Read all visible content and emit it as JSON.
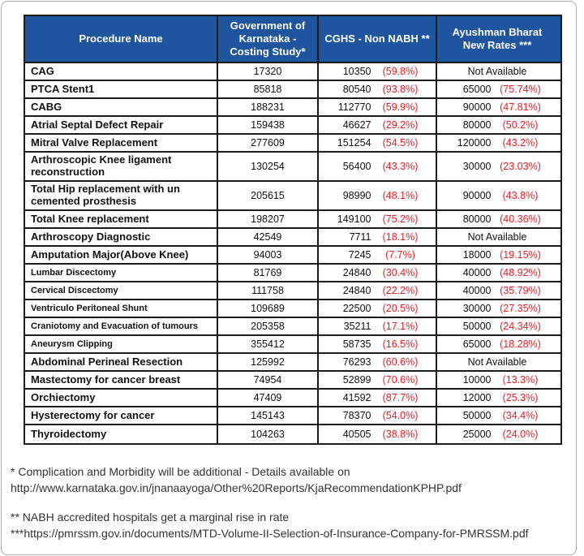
{
  "colors": {
    "header_bg": "#1f549e",
    "header_text": "#ffffff",
    "percent_red": "#ed1c24",
    "body_text": "#111111",
    "table_border": "#1b1b1b"
  },
  "table": {
    "headers": [
      "Procedure Name",
      "Government of Karnataka - Costing Study*",
      "CGHS - Non NABH **",
      "Ayushman Bharat New Rates ***"
    ],
    "rows": [
      {
        "name": "CAG",
        "gok": "17320",
        "cghs": "10350",
        "cghs_pct": "(59.8%)",
        "ab": "Not Available",
        "ab_pct": "",
        "small": false,
        "tall": false
      },
      {
        "name": "PTCA Stent1",
        "gok": "85818",
        "cghs": "80540",
        "cghs_pct": "(93.8%)",
        "ab": "65000",
        "ab_pct": "(75.74%)",
        "small": false,
        "tall": false
      },
      {
        "name": "CABG",
        "gok": "188231",
        "cghs": "112770",
        "cghs_pct": "(59.9%)",
        "ab": "90000",
        "ab_pct": "(47.81%)",
        "small": false,
        "tall": false
      },
      {
        "name": "Atrial Septal Defect Repair",
        "gok": "159438",
        "cghs": "46627",
        "cghs_pct": "(29.2%)",
        "ab": "80000",
        "ab_pct": "(50.2%)",
        "small": false,
        "tall": false
      },
      {
        "name": "Mitral Valve Replacement",
        "gok": "277609",
        "cghs": "151254",
        "cghs_pct": "(54.5%)",
        "ab": "120000",
        "ab_pct": "(43.2%)",
        "small": false,
        "tall": false
      },
      {
        "name": "Arthroscopic Knee ligament reconstruction",
        "gok": "130254",
        "cghs": "56400",
        "cghs_pct": "(43.3%)",
        "ab": "30000",
        "ab_pct": "(23.03%)",
        "small": false,
        "tall": true
      },
      {
        "name": "Total Hip replacement with un cemented prosthesis",
        "gok": "205615",
        "cghs": "98990",
        "cghs_pct": "(48.1%)",
        "ab": "90000",
        "ab_pct": "(43.8%)",
        "small": false,
        "tall": true
      },
      {
        "name": "Total Knee replacement",
        "gok": "198207",
        "cghs": "149100",
        "cghs_pct": "(75.2%)",
        "ab": "80000",
        "ab_pct": "(40.36%)",
        "small": false,
        "tall": false
      },
      {
        "name": "Arthroscopy Diagnostic",
        "gok": "42549",
        "cghs": "7711",
        "cghs_pct": "(18.1%)",
        "ab": "Not Available",
        "ab_pct": "",
        "small": false,
        "tall": false
      },
      {
        "name": "Amputation Major(Above Knee)",
        "gok": "94003",
        "cghs": "7245",
        "cghs_pct": "(7.7%)",
        "ab": "18000",
        "ab_pct": "(19.15%)",
        "small": false,
        "tall": false
      },
      {
        "name": "Lumbar Discectomy",
        "gok": "81769",
        "cghs": "24840",
        "cghs_pct": "(30.4%)",
        "ab": "40000",
        "ab_pct": "(48.92%)",
        "small": true,
        "tall": false
      },
      {
        "name": "Cervical Discectomy",
        "gok": "111758",
        "cghs": "24840",
        "cghs_pct": "(22.2%)",
        "ab": "40000",
        "ab_pct": "(35.79%)",
        "small": true,
        "tall": false
      },
      {
        "name": "Ventriculo Peritoneal Shunt",
        "gok": "109689",
        "cghs": "22500",
        "cghs_pct": "(20.5%)",
        "ab": "30000",
        "ab_pct": "(27.35%)",
        "small": true,
        "tall": false
      },
      {
        "name": "Craniotomy and Evacuation of tumours",
        "gok": "205358",
        "cghs": "35211",
        "cghs_pct": "(17.1%)",
        "ab": "50000",
        "ab_pct": "(24.34%)",
        "small": true,
        "tall": false
      },
      {
        "name": "Aneurysm Clipping",
        "gok": "355412",
        "cghs": "58735",
        "cghs_pct": "(16.5%)",
        "ab": "65000",
        "ab_pct": "(18.28%)",
        "small": true,
        "tall": false
      },
      {
        "name": "Abdominal Perineal Resection",
        "gok": "125992",
        "cghs": "76293",
        "cghs_pct": "(60.6%)",
        "ab": "Not Available",
        "ab_pct": "",
        "small": false,
        "tall": false
      },
      {
        "name": "Mastectomy for cancer breast",
        "gok": "74954",
        "cghs": "52899",
        "cghs_pct": "(70.6%)",
        "ab": "10000",
        "ab_pct": "(13.3%)",
        "small": false,
        "tall": false
      },
      {
        "name": "Orchiectomy",
        "gok": "47409",
        "cghs": "41592",
        "cghs_pct": "(87.7%)",
        "ab": "12000",
        "ab_pct": "(25.3%)",
        "small": false,
        "tall": false
      },
      {
        "name": "Hysterectomy for cancer",
        "gok": "145143",
        "cghs": "78370",
        "cghs_pct": "(54.0%)",
        "ab": "50000",
        "ab_pct": "(34.4%)",
        "small": false,
        "tall": false
      },
      {
        "name": "Thyroidectomy",
        "gok": "104263",
        "cghs": "40505",
        "cghs_pct": "(38.8%)",
        "ab": "25000",
        "ab_pct": "(24.0%)",
        "small": false,
        "tall": false
      }
    ]
  },
  "footnotes": {
    "note1_line1": "* Complication and Morbidity will be additional - Details available on",
    "note1_line2": "http://www.karnataka.gov.in/jnanaayoga/Other%20Reports/KjaRecommendationKPHP.pdf",
    "note2_line1": "** NABH accredited hospitals get a marginal rise in rate",
    "note2_line2": "***https://pmrssm.gov.in/documents/MTD-Volume-II-Selection-of-Insurance-Company-for-PMRSSM.pdf"
  }
}
